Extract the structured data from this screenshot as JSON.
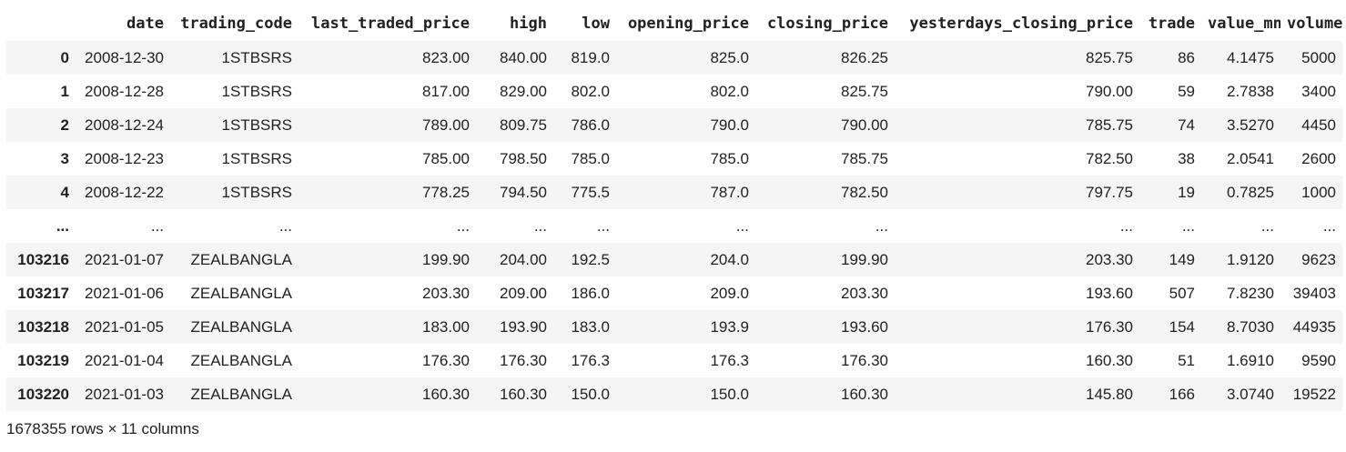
{
  "table": {
    "columns": [
      "",
      "date",
      "trading_code",
      "last_traded_price",
      "high",
      "low",
      "opening_price",
      "closing_price",
      "yesterdays_closing_price",
      "trade",
      "value_mn",
      "volume"
    ],
    "rows": [
      [
        "0",
        "2008-12-30",
        "1STBSRS",
        "823.00",
        "840.00",
        "819.0",
        "825.0",
        "826.25",
        "825.75",
        "86",
        "4.1475",
        "5000"
      ],
      [
        "1",
        "2008-12-28",
        "1STBSRS",
        "817.00",
        "829.00",
        "802.0",
        "802.0",
        "825.75",
        "790.00",
        "59",
        "2.7838",
        "3400"
      ],
      [
        "2",
        "2008-12-24",
        "1STBSRS",
        "789.00",
        "809.75",
        "786.0",
        "790.0",
        "790.00",
        "785.75",
        "74",
        "3.5270",
        "4450"
      ],
      [
        "3",
        "2008-12-23",
        "1STBSRS",
        "785.00",
        "798.50",
        "785.0",
        "785.0",
        "785.75",
        "782.50",
        "38",
        "2.0541",
        "2600"
      ],
      [
        "4",
        "2008-12-22",
        "1STBSRS",
        "778.25",
        "794.50",
        "775.5",
        "787.0",
        "782.50",
        "797.75",
        "19",
        "0.7825",
        "1000"
      ],
      [
        "...",
        "...",
        "...",
        "...",
        "...",
        "...",
        "...",
        "...",
        "...",
        "...",
        "...",
        "..."
      ],
      [
        "103216",
        "2021-01-07",
        "ZEALBANGLA",
        "199.90",
        "204.00",
        "192.5",
        "204.0",
        "199.90",
        "203.30",
        "149",
        "1.9120",
        "9623"
      ],
      [
        "103217",
        "2021-01-06",
        "ZEALBANGLA",
        "203.30",
        "209.00",
        "186.0",
        "209.0",
        "203.30",
        "193.60",
        "507",
        "7.8230",
        "39403"
      ],
      [
        "103218",
        "2021-01-05",
        "ZEALBANGLA",
        "183.00",
        "193.90",
        "183.0",
        "193.9",
        "193.60",
        "176.30",
        "154",
        "8.7030",
        "44935"
      ],
      [
        "103219",
        "2021-01-04",
        "ZEALBANGLA",
        "176.30",
        "176.30",
        "176.3",
        "176.3",
        "176.30",
        "160.30",
        "51",
        "1.6910",
        "9590"
      ],
      [
        "103220",
        "2021-01-03",
        "ZEALBANGLA",
        "160.30",
        "160.30",
        "150.0",
        "150.0",
        "160.30",
        "145.80",
        "166",
        "3.0740",
        "19522"
      ]
    ]
  },
  "shape_text": "1678355 rows × 11 columns"
}
